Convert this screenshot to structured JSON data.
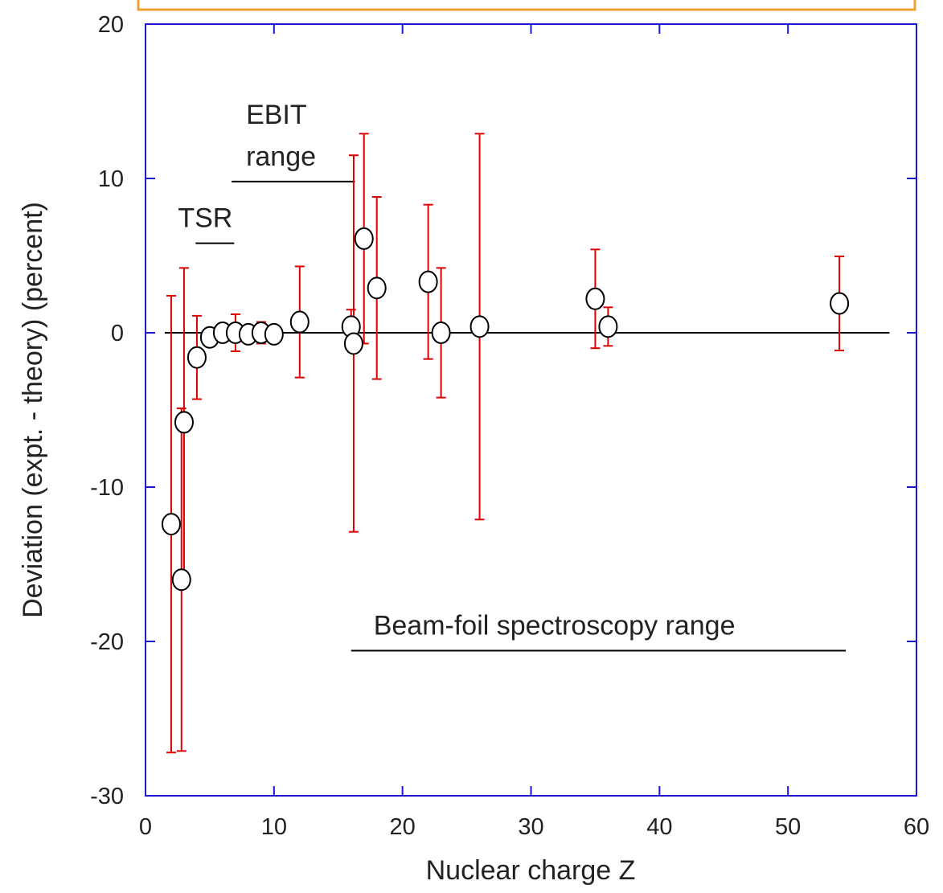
{
  "chart_data": {
    "type": "scatter",
    "x_label": "Nuclear charge Z",
    "y_label": "Deviation (expt. - theory) (percent)",
    "x": [
      2,
      2.8,
      3,
      4,
      5,
      6,
      7,
      8,
      9,
      10,
      12,
      16,
      16.2,
      17,
      18,
      22,
      23,
      26,
      35,
      36,
      54
    ],
    "values": [
      -12.4,
      -16.0,
      -5.8,
      -1.6,
      -0.3,
      0,
      0,
      -0.1,
      0,
      -0.1,
      0.7,
      0.4,
      -0.7,
      6.1,
      2.9,
      3.3,
      0,
      0.4,
      2.2,
      0.4,
      1.9
    ],
    "errors": [
      14.8,
      11.1,
      10.0,
      2.7,
      null,
      null,
      1.2,
      null,
      0.7,
      null,
      3.6,
      1.1,
      12.2,
      6.8,
      5.9,
      5.0,
      4.2,
      12.5,
      3.2,
      1.25,
      3.05
    ],
    "marker_color": "#ffffff",
    "error_color": "#dd0000",
    "xlim": [
      0,
      60
    ],
    "xticks": [
      0,
      10,
      20,
      30,
      40,
      50,
      60
    ],
    "ylim": [
      -30,
      20
    ],
    "yticks": [
      -30,
      -20,
      -10,
      0,
      10,
      20
    ],
    "reference_line": {
      "y": 0,
      "x": [
        1.5,
        57.9
      ]
    },
    "ranges": [
      {
        "label": [
          "TSR"
        ],
        "x": [
          3.9,
          6.9
        ],
        "y": 5.8
      },
      {
        "label": [
          "EBIT",
          "range"
        ],
        "x": [
          6.7,
          16.3
        ],
        "y": 9.8
      },
      {
        "label": [
          "Beam-foil spectroscopy range"
        ],
        "x": [
          16,
          54.5
        ],
        "y": -20.6
      }
    ]
  }
}
